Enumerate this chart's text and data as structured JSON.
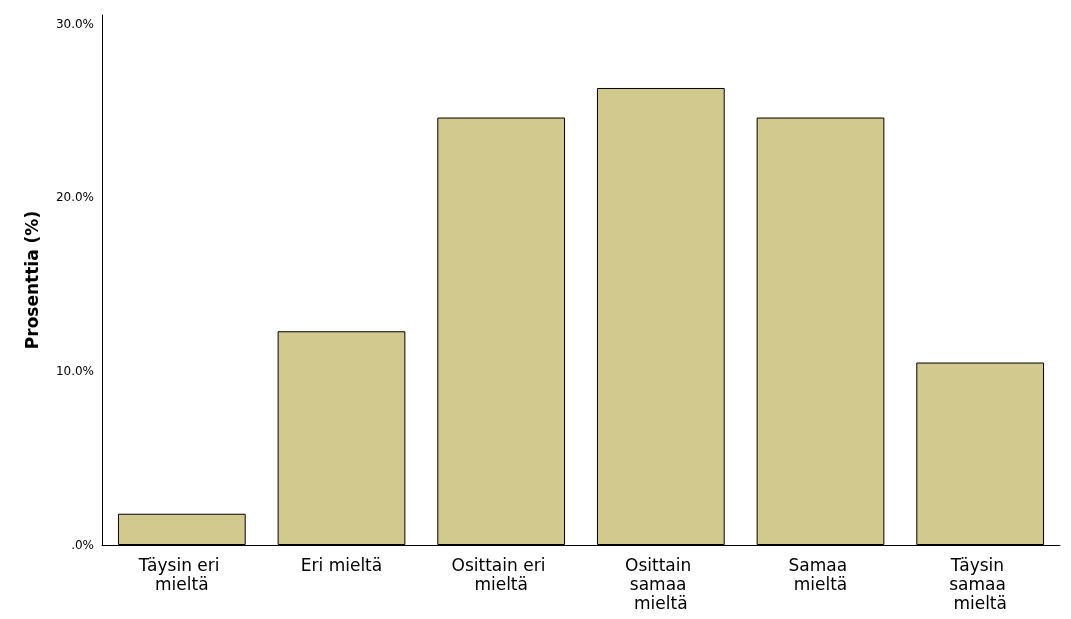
{
  "chart_data": {
    "type": "bar",
    "ylabel": "Prosenttia (%)",
    "categories": [
      "Täysin eri mieltä",
      "Eri mieltä",
      "Osittain eri mieltä",
      "Osittain samaa mieltä",
      "Samaa mieltä",
      "Täysin samaa mieltä"
    ],
    "values": [
      1.8,
      12.3,
      24.6,
      26.3,
      24.6,
      10.5
    ],
    "color": "#d2c98f",
    "ylim": [
      0,
      30.5
    ],
    "yticks": [
      {
        "value": 0,
        "label": ".0%"
      },
      {
        "value": 10,
        "label": "10.0%"
      },
      {
        "value": 20,
        "label": "20.0%"
      },
      {
        "value": 30,
        "label": "30.0%"
      }
    ],
    "grid": false
  }
}
